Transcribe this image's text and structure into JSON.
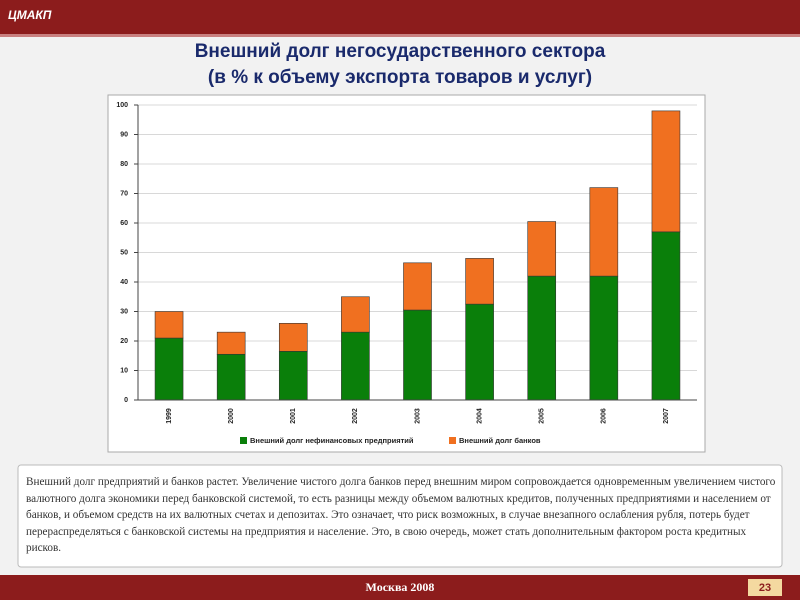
{
  "header": {
    "logo": "ЦМАКП"
  },
  "chart_data": {
    "type": "stacked-bar",
    "title": "Внешний долг негосударственного сектора",
    "subtitle": "(в % к объему экспорта товаров и услуг)",
    "categories": [
      "1999",
      "2000",
      "2001",
      "2002",
      "2003",
      "2004",
      "2005",
      "2006",
      "2007"
    ],
    "series": [
      {
        "name": "Внешний долг нефинансовых предприятий",
        "color": "#0a7f0a",
        "values": [
          21,
          15.5,
          16.5,
          23,
          30.5,
          32.5,
          42,
          42,
          57
        ]
      },
      {
        "name": "Внешний долг банков",
        "color": "#f07020",
        "values": [
          9,
          7.5,
          9.5,
          12,
          16,
          15.5,
          18.5,
          30,
          41
        ]
      }
    ],
    "ylim": [
      0,
      100
    ],
    "yticks": [
      0,
      10,
      20,
      30,
      40,
      50,
      60,
      70,
      80,
      90,
      100
    ],
    "grid": true,
    "legend": "bottom"
  },
  "note": "Внешний долг предприятий и банков растет. Увеличение чистого долга банков перед внешним миром сопровождается одновременным увеличением чистого валютного долга экономики перед банковской системой, то есть разницы между объемом валютных кредитов, полученных предприятиями и населением от банков, и объемом средств на их валютных счетах и депозитах. Это означает, что риск возможных, в случае внезапного ослабления рубля, потерь будет перераспределяться с банковской системы на предприятия и население. Это, в свою очередь, может стать дополнительным фактором роста кредитных рисков.",
  "footer": {
    "city": "Москва 2008",
    "page": "23"
  }
}
